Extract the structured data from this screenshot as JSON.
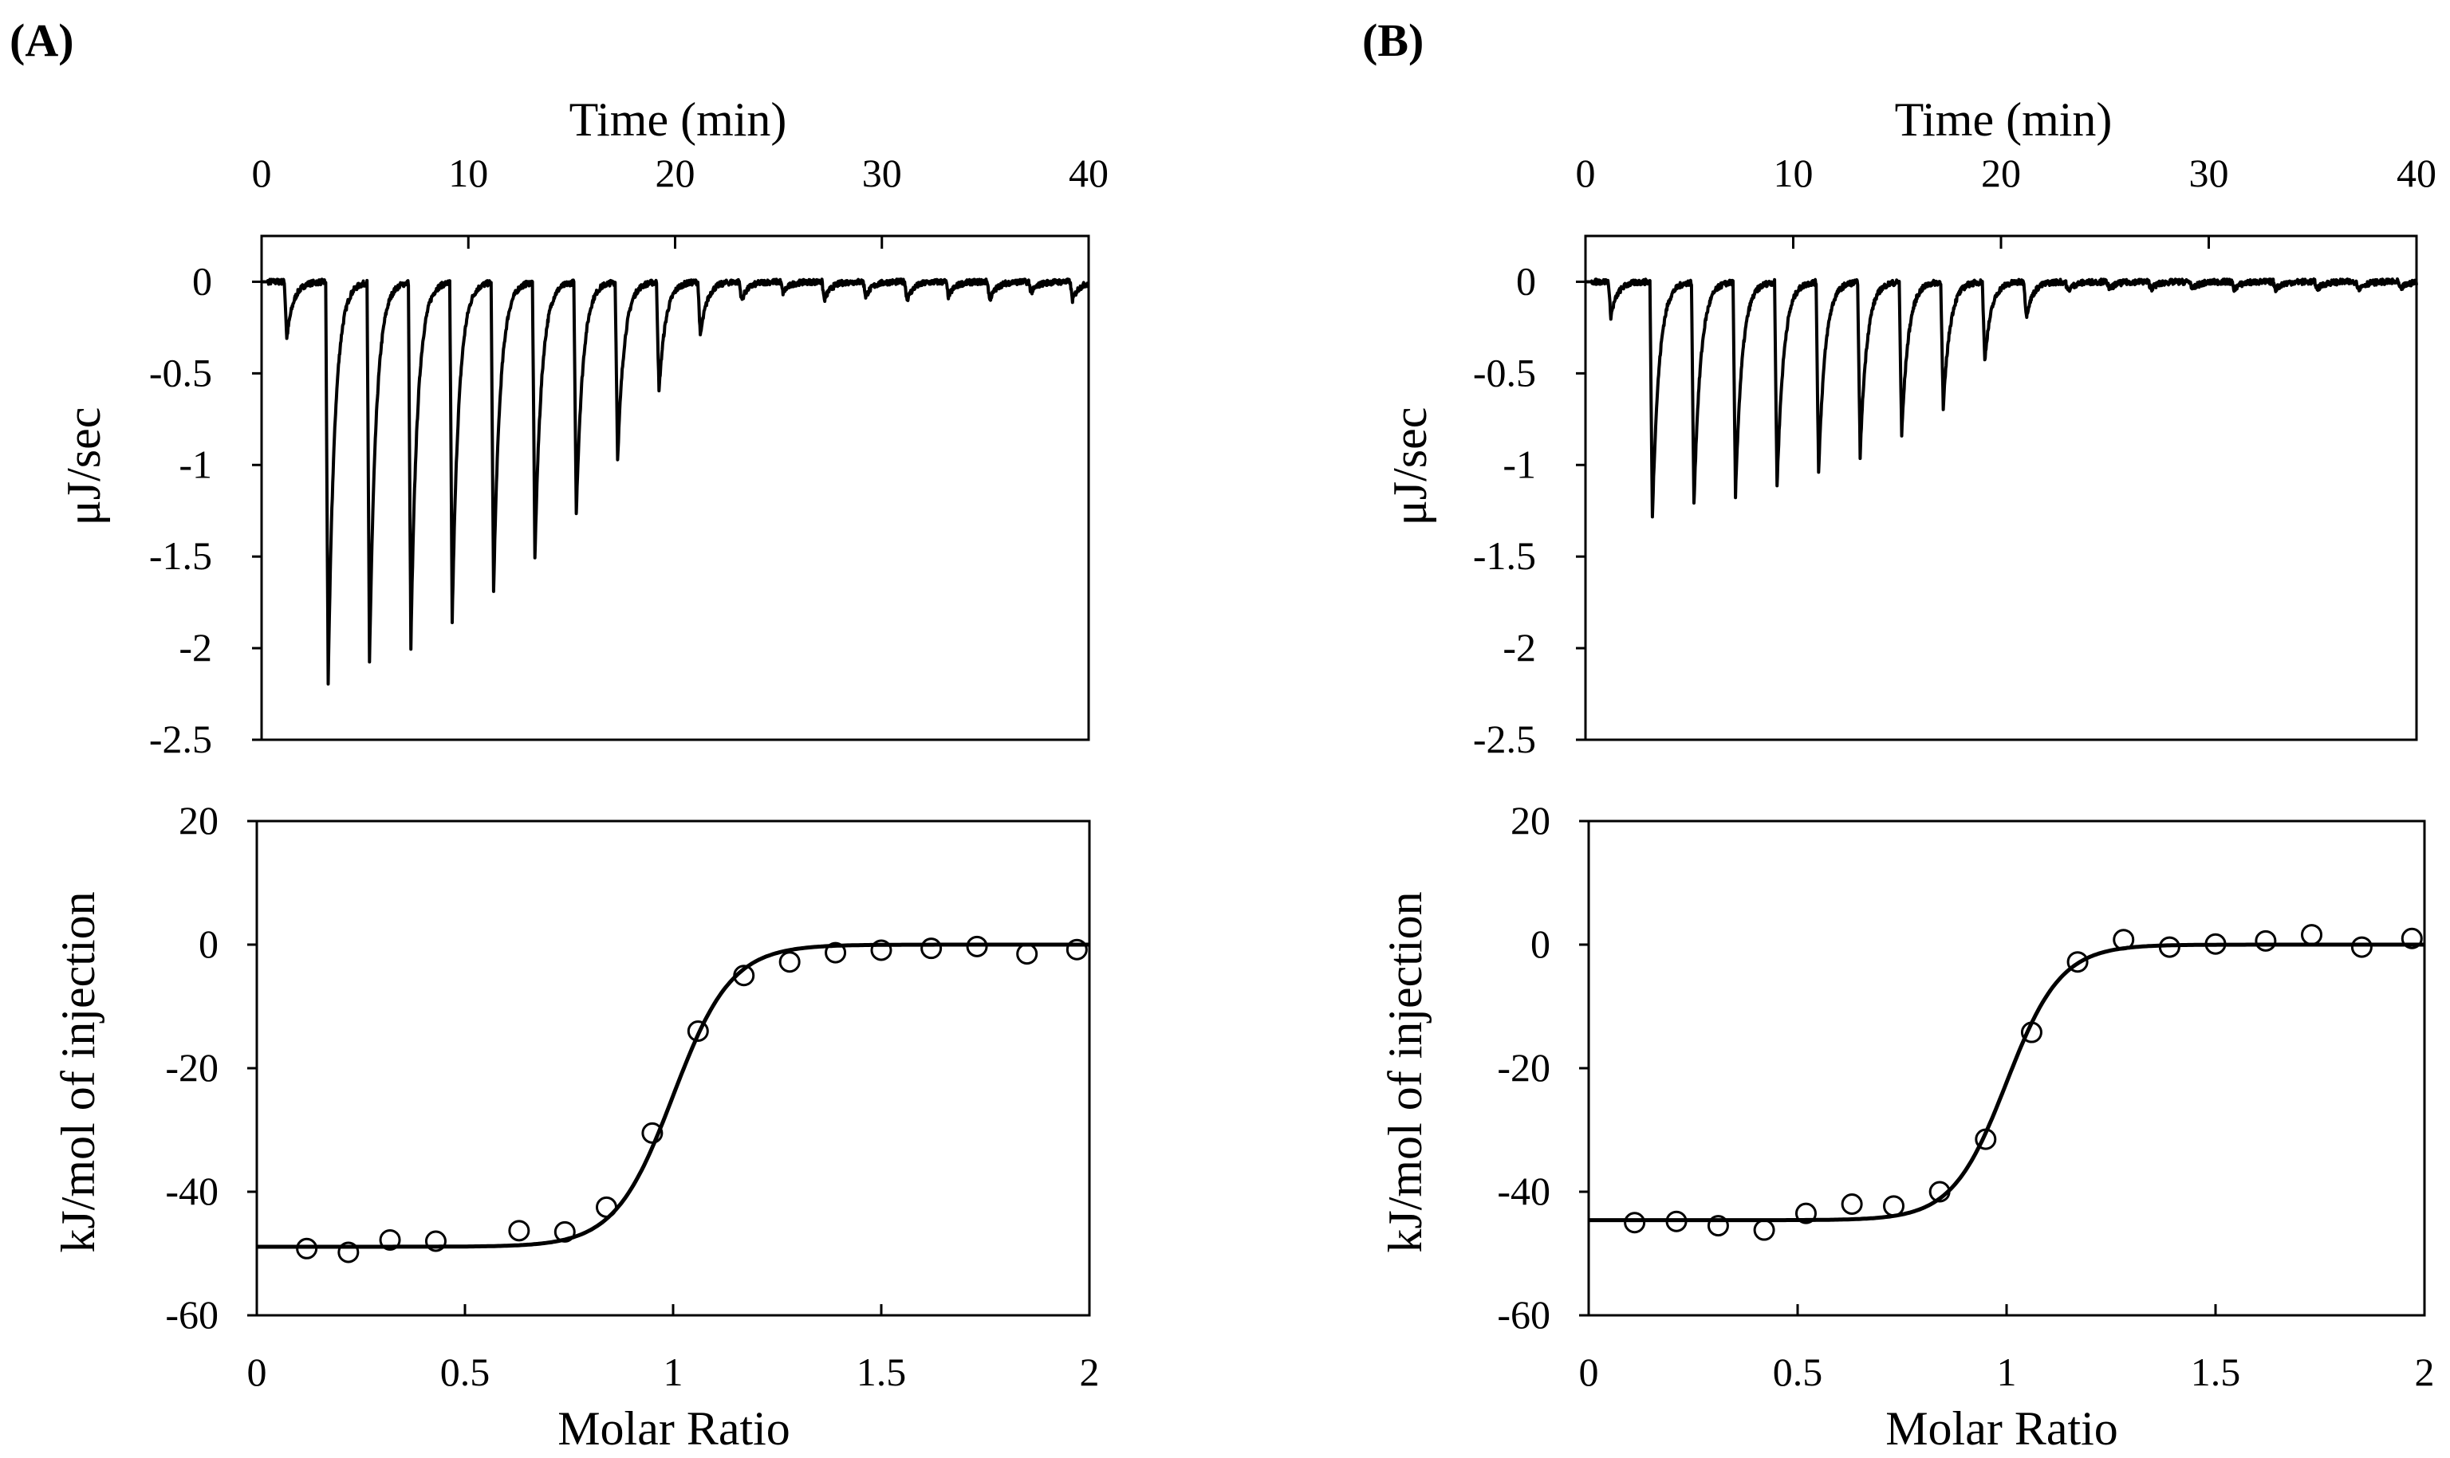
{
  "colors": {
    "ink": "#000000",
    "background": "#ffffff"
  },
  "chart_data": [
    {
      "panel": "(A)",
      "raw": {
        "type": "line",
        "title": "",
        "xlabel": "Time (min)",
        "ylabel": "μJ/sec",
        "xlim": [
          0,
          40
        ],
        "ylim": [
          -2.5,
          0.25
        ],
        "xticks": [
          0,
          10,
          20,
          30,
          40
        ],
        "xtick_labels": [
          "0",
          "10",
          "20",
          "30",
          "40"
        ],
        "yticks": [
          0,
          -0.5,
          -1,
          -1.5,
          -2,
          -2.5
        ],
        "ytick_labels": [
          "0",
          "-0.5",
          "-1",
          "-1.5",
          "-2",
          "-2.5"
        ],
        "injections": [
          {
            "t": 1.1,
            "peak": -0.31
          },
          {
            "t": 3.1,
            "peak": -2.19
          },
          {
            "t": 5.1,
            "peak": -2.08
          },
          {
            "t": 7.1,
            "peak": -1.99
          },
          {
            "t": 9.1,
            "peak": -1.85
          },
          {
            "t": 11.1,
            "peak": -1.7
          },
          {
            "t": 13.1,
            "peak": -1.51
          },
          {
            "t": 15.1,
            "peak": -1.27
          },
          {
            "t": 17.1,
            "peak": -0.97
          },
          {
            "t": 19.1,
            "peak": -0.6
          },
          {
            "t": 21.1,
            "peak": -0.3
          },
          {
            "t": 23.1,
            "peak": -0.1
          },
          {
            "t": 25.1,
            "peak": -0.06
          },
          {
            "t": 27.1,
            "peak": -0.1
          },
          {
            "t": 29.1,
            "peak": -0.08
          },
          {
            "t": 31.1,
            "peak": -0.1
          },
          {
            "t": 33.1,
            "peak": -0.08
          },
          {
            "t": 35.1,
            "peak": -0.1
          },
          {
            "t": 37.1,
            "peak": -0.06
          },
          {
            "t": 39.1,
            "peak": -0.1
          }
        ]
      },
      "binding": {
        "type": "scatter",
        "xlabel": "Molar Ratio",
        "ylabel": "kJ/mol of injection",
        "xlim": [
          0,
          2
        ],
        "ylim": [
          -60,
          20
        ],
        "xticks": [
          0,
          0.5,
          1,
          1.5,
          2
        ],
        "xtick_labels": [
          "0",
          "0.5",
          "1",
          "1.5",
          "2"
        ],
        "yticks": [
          20,
          0,
          -20,
          -40,
          -60
        ],
        "ytick_labels": [
          "20",
          "0",
          "-20",
          "-40",
          "-60"
        ],
        "points": [
          {
            "x": 0.12,
            "y": -49.2
          },
          {
            "x": 0.22,
            "y": -49.8
          },
          {
            "x": 0.32,
            "y": -47.8
          },
          {
            "x": 0.43,
            "y": -48.0
          },
          {
            "x": 0.63,
            "y": -46.3
          },
          {
            "x": 0.74,
            "y": -46.5
          },
          {
            "x": 0.84,
            "y": -42.5
          },
          {
            "x": 0.95,
            "y": -30.5
          },
          {
            "x": 1.06,
            "y": -14.0
          },
          {
            "x": 1.17,
            "y": -5.0
          },
          {
            "x": 1.28,
            "y": -2.8
          },
          {
            "x": 1.39,
            "y": -1.3
          },
          {
            "x": 1.5,
            "y": -0.9
          },
          {
            "x": 1.62,
            "y": -0.6
          },
          {
            "x": 1.73,
            "y": -0.3
          },
          {
            "x": 1.85,
            "y": -1.5
          },
          {
            "x": 1.97,
            "y": -0.8
          }
        ],
        "fit": {
          "dH": -48.9,
          "n": 1.0,
          "width": 0.07
        }
      }
    },
    {
      "panel": "(B)",
      "raw": {
        "type": "line",
        "title": "",
        "xlabel": "Time (min)",
        "ylabel": "μJ/sec",
        "xlim": [
          0,
          40
        ],
        "ylim": [
          -2.5,
          0.25
        ],
        "xticks": [
          0,
          10,
          20,
          30,
          40
        ],
        "xtick_labels": [
          "0",
          "10",
          "20",
          "30",
          "40"
        ],
        "yticks": [
          0,
          -0.5,
          -1,
          -1.5,
          -2,
          -2.5
        ],
        "ytick_labels": [
          "0",
          "-0.5",
          "-1",
          "-1.5",
          "-2",
          "-2.5"
        ],
        "injections": [
          {
            "t": 1.1,
            "peak": -0.19
          },
          {
            "t": 3.1,
            "peak": -1.29
          },
          {
            "t": 5.1,
            "peak": -1.22
          },
          {
            "t": 7.1,
            "peak": -1.17
          },
          {
            "t": 9.1,
            "peak": -1.12
          },
          {
            "t": 11.1,
            "peak": -1.04
          },
          {
            "t": 13.1,
            "peak": -0.95
          },
          {
            "t": 15.1,
            "peak": -0.84
          },
          {
            "t": 17.1,
            "peak": -0.7
          },
          {
            "t": 19.1,
            "peak": -0.43
          },
          {
            "t": 21.1,
            "peak": -0.19
          },
          {
            "t": 23.1,
            "peak": -0.05
          },
          {
            "t": 25.1,
            "peak": -0.04
          },
          {
            "t": 27.1,
            "peak": -0.04
          },
          {
            "t": 29.1,
            "peak": -0.04
          },
          {
            "t": 31.1,
            "peak": -0.04
          },
          {
            "t": 33.1,
            "peak": -0.04
          },
          {
            "t": 35.1,
            "peak": -0.04
          },
          {
            "t": 37.1,
            "peak": -0.04
          },
          {
            "t": 39.1,
            "peak": -0.04
          }
        ]
      },
      "binding": {
        "type": "scatter",
        "xlabel": "Molar Ratio",
        "ylabel": "kJ/mol of injection",
        "xlim": [
          0,
          2
        ],
        "ylim": [
          -60,
          20
        ],
        "xticks": [
          0,
          0.5,
          1,
          1.5,
          2
        ],
        "xtick_labels": [
          "0",
          "0.5",
          "1",
          "1.5",
          "2"
        ],
        "yticks": [
          20,
          0,
          -20,
          -40,
          -60
        ],
        "ytick_labels": [
          "20",
          "0",
          "-20",
          "-40",
          "-60"
        ],
        "points": [
          {
            "x": 0.11,
            "y": -45.0
          },
          {
            "x": 0.21,
            "y": -44.8
          },
          {
            "x": 0.31,
            "y": -45.5
          },
          {
            "x": 0.42,
            "y": -46.2
          },
          {
            "x": 0.52,
            "y": -43.5
          },
          {
            "x": 0.63,
            "y": -42.0
          },
          {
            "x": 0.73,
            "y": -42.3
          },
          {
            "x": 0.84,
            "y": -40.0
          },
          {
            "x": 0.95,
            "y": -31.5
          },
          {
            "x": 1.06,
            "y": -14.2
          },
          {
            "x": 1.17,
            "y": -2.8
          },
          {
            "x": 1.28,
            "y": 0.8
          },
          {
            "x": 1.39,
            "y": -0.4
          },
          {
            "x": 1.5,
            "y": 0.1
          },
          {
            "x": 1.62,
            "y": 0.6
          },
          {
            "x": 1.73,
            "y": 1.6
          },
          {
            "x": 1.85,
            "y": -0.4
          },
          {
            "x": 1.97,
            "y": 1.0
          }
        ],
        "fit": {
          "dH": -44.6,
          "n": 1.0,
          "width": 0.065
        }
      }
    }
  ]
}
